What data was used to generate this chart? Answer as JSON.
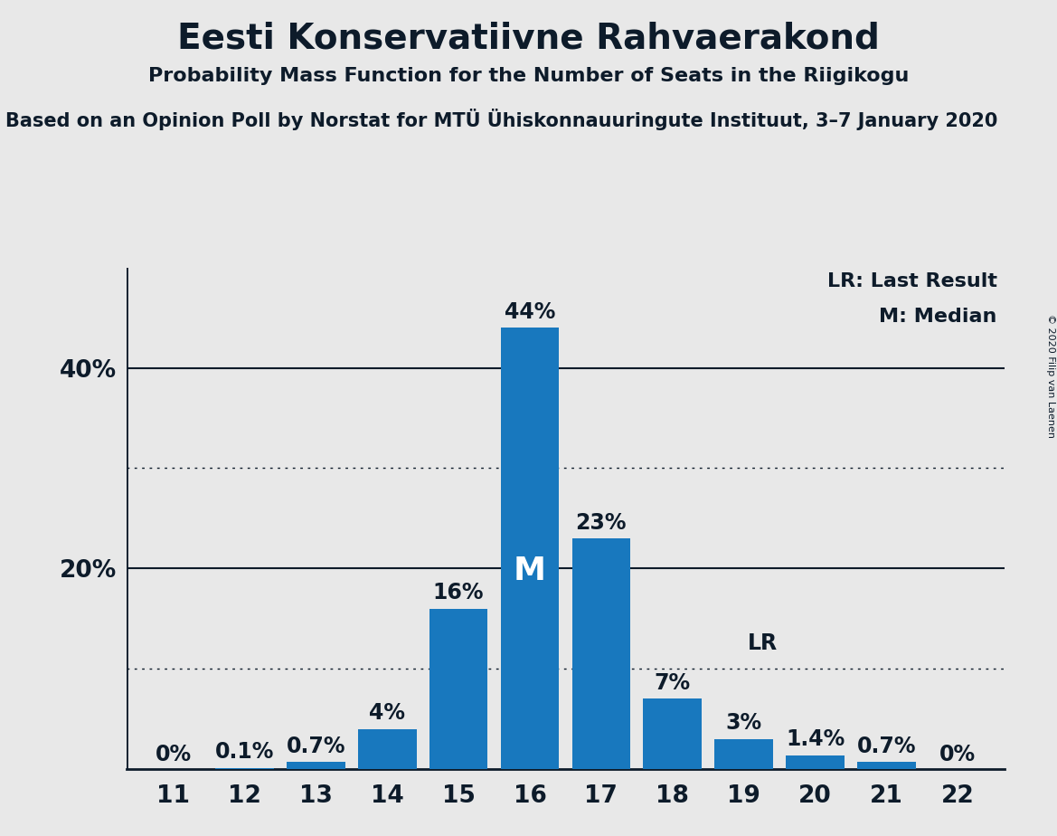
{
  "title": "Eesti Konservatiivne Rahvaerakond",
  "subtitle": "Probability Mass Function for the Number of Seats in the Riigikogu",
  "subsubtitle": "Based on an Opinion Poll by Norstat for MTÜ Ühiskonnauuringute Instituut, 3–7 January 2020",
  "copyright": "© 2020 Filip van Laenen",
  "categories": [
    11,
    12,
    13,
    14,
    15,
    16,
    17,
    18,
    19,
    20,
    21,
    22
  ],
  "values": [
    0.0,
    0.1,
    0.7,
    4.0,
    16.0,
    44.0,
    23.0,
    7.0,
    3.0,
    1.4,
    0.7,
    0.0
  ],
  "labels": [
    "0%",
    "0.1%",
    "0.7%",
    "4%",
    "16%",
    "44%",
    "23%",
    "7%",
    "3%",
    "1.4%",
    "0.7%",
    "0%"
  ],
  "bar_color": "#1878BE",
  "background_color": "#E8E8E8",
  "text_color": "#0D1B2A",
  "median_bar_index": 5,
  "lr_bar_index": 8,
  "legend_lr": "LR: Last Result",
  "legend_m": "M: Median",
  "solid_gridlines": [
    20,
    40
  ],
  "dotted_gridlines": [
    10,
    30
  ],
  "ylim": [
    0,
    50
  ],
  "figsize": [
    11.69,
    9.24
  ],
  "dpi": 100
}
